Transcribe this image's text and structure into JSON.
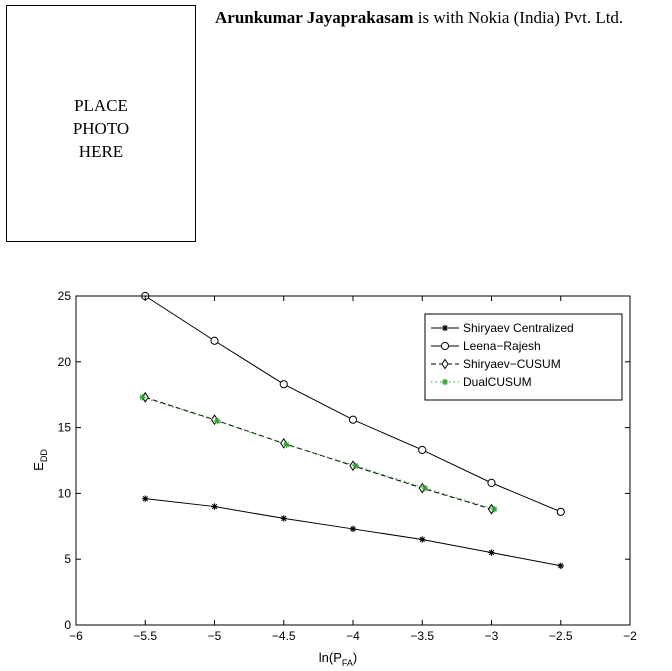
{
  "photo_placeholder": {
    "lines": [
      "PLACE",
      "PHOTO",
      "HERE"
    ]
  },
  "bio": {
    "name": "Arunkumar Jayaprakasam",
    "text": " is with Nokia (India) Pvt. Ltd."
  },
  "colors": {
    "axis": "#000000",
    "line": "#000000",
    "dualcusum": "#2e9e2e"
  },
  "chart_data": {
    "type": "line",
    "xlabel": "ln(P",
    "xlabel_sub": "FA",
    "xlabel_end": ")",
    "ylabel": "E",
    "ylabel_sub": "DD",
    "xlim": [
      -6,
      -2
    ],
    "ylim": [
      0,
      25
    ],
    "xticks": [
      -6,
      -5.5,
      -5,
      -4.5,
      -4,
      -3.5,
      -3,
      -2.5,
      -2
    ],
    "xtick_labels": [
      "−6",
      "−5.5",
      "−5",
      "−4.5",
      "−4",
      "−3.5",
      "−3",
      "−2.5",
      "−2"
    ],
    "yticks": [
      0,
      5,
      10,
      15,
      20,
      25
    ],
    "ytick_labels": [
      "0",
      "5",
      "10",
      "15",
      "20",
      "25"
    ],
    "grid": false,
    "legend_position": "top-right",
    "series": [
      {
        "name": "Shiryaev Centralized",
        "marker": "star",
        "dash": "solid",
        "color": "#000000",
        "x": [
          -5.5,
          -5,
          -4.5,
          -4,
          -3.5,
          -3,
          -2.5
        ],
        "y": [
          9.6,
          9.0,
          8.1,
          7.3,
          6.5,
          5.5,
          4.5
        ]
      },
      {
        "name": "Leena−Rajesh",
        "marker": "circle",
        "dash": "solid",
        "color": "#000000",
        "x": [
          -5.5,
          -5,
          -4.5,
          -4,
          -3.5,
          -3,
          -2.5
        ],
        "y": [
          25.0,
          21.6,
          18.3,
          15.6,
          13.3,
          10.8,
          8.6
        ]
      },
      {
        "name": "Shiryaev−CUSUM",
        "marker": "diamond",
        "dash": "dashed",
        "color": "#000000",
        "x": [
          -5.5,
          -5,
          -4.5,
          -4,
          -3.5,
          -3
        ],
        "y": [
          17.3,
          15.6,
          13.8,
          12.1,
          10.4,
          8.8
        ]
      },
      {
        "name": "DualCUSUM",
        "marker": "star",
        "dash": "dotted",
        "color": "#2e9e2e",
        "x": [
          -5.52,
          -4.98,
          -4.48,
          -3.98,
          -3.48,
          -2.98
        ],
        "y": [
          17.3,
          15.5,
          13.7,
          12.1,
          10.4,
          8.8
        ]
      }
    ]
  }
}
